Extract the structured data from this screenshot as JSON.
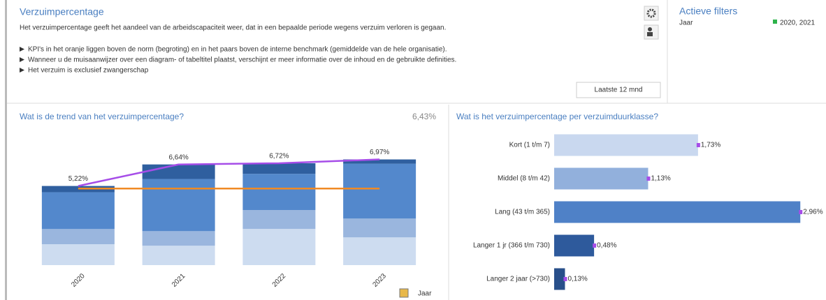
{
  "header": {
    "title": "Verzuimpercentage",
    "description": "Het verzuimpercentage geeft het aandeel van de arbeidscapaciteit weer, dat in een bepaalde periode wegens verzuim verloren is gegaan.",
    "bullets": [
      "KPI's in het oranje liggen boven de norm (begroting) en in het paars boven de interne benchmark (gemiddelde van de hele organisatie).",
      "Wanneer u de muisaanwijzer over een diagram- of tabeltitel plaatst, verschijnt er meer informatie over de inhoud en de gebruikte definities.",
      "Het verzuim is exclusief zwangerschap"
    ],
    "button": "Laatste 12 mnd"
  },
  "filters": {
    "title": "Actieve filters",
    "items": [
      {
        "label": "Jaar",
        "value": "2020, 2021"
      }
    ]
  },
  "chart_data": [
    {
      "type": "stacked_bar",
      "title": "Wat is de trend van het verzuimpercentage?",
      "annotation": "6,43%",
      "xlabel": "Jaar",
      "categories": [
        "2020",
        "2021",
        "2022",
        "2023"
      ],
      "series": [
        {
          "color": "#cddcf0",
          "values": [
            1.38,
            1.28,
            2.39,
            1.83
          ]
        },
        {
          "color": "#9ab6de",
          "values": [
            1.0,
            0.96,
            1.24,
            1.24
          ]
        },
        {
          "color": "#5388cc",
          "values": [
            2.43,
            3.44,
            2.39,
            3.62
          ]
        },
        {
          "color": "#2f5f9f",
          "values": [
            0.41,
            0.96,
            0.7,
            0.28
          ]
        }
      ],
      "totals": {
        "color": "#a64de8",
        "values": [
          5.22,
          6.64,
          6.72,
          6.97
        ],
        "value_labels": [
          "5,22%",
          "6,64%",
          "6,72%",
          "6,97%"
        ]
      },
      "benchmark": {
        "color": "#f08a24",
        "values": [
          5.05,
          5.05,
          5.05,
          5.05
        ]
      },
      "ylim": [
        0,
        7.5
      ]
    },
    {
      "type": "barh",
      "title": "Wat is het verzuimpercentage per verzuimduurklasse?",
      "categories": [
        "Kort (1 t/m 7)",
        "Middel (8 t/m 42)",
        "Lang (43 t/m 365)",
        "Langer 1 jr (366 t/m 730)",
        "Langer 2 jaar (>730)"
      ],
      "values": [
        1.73,
        1.13,
        2.96,
        0.48,
        0.13
      ],
      "value_labels": [
        "1,73%",
        "1,13%",
        "2,96%",
        "0,48%",
        "0,13%"
      ],
      "colors": [
        "#c9d8ef",
        "#92b0dc",
        "#4f81c7",
        "#2e5a9c",
        "#284f8a"
      ],
      "marker_color": "#a64de8",
      "xlim": [
        0,
        3
      ]
    }
  ]
}
